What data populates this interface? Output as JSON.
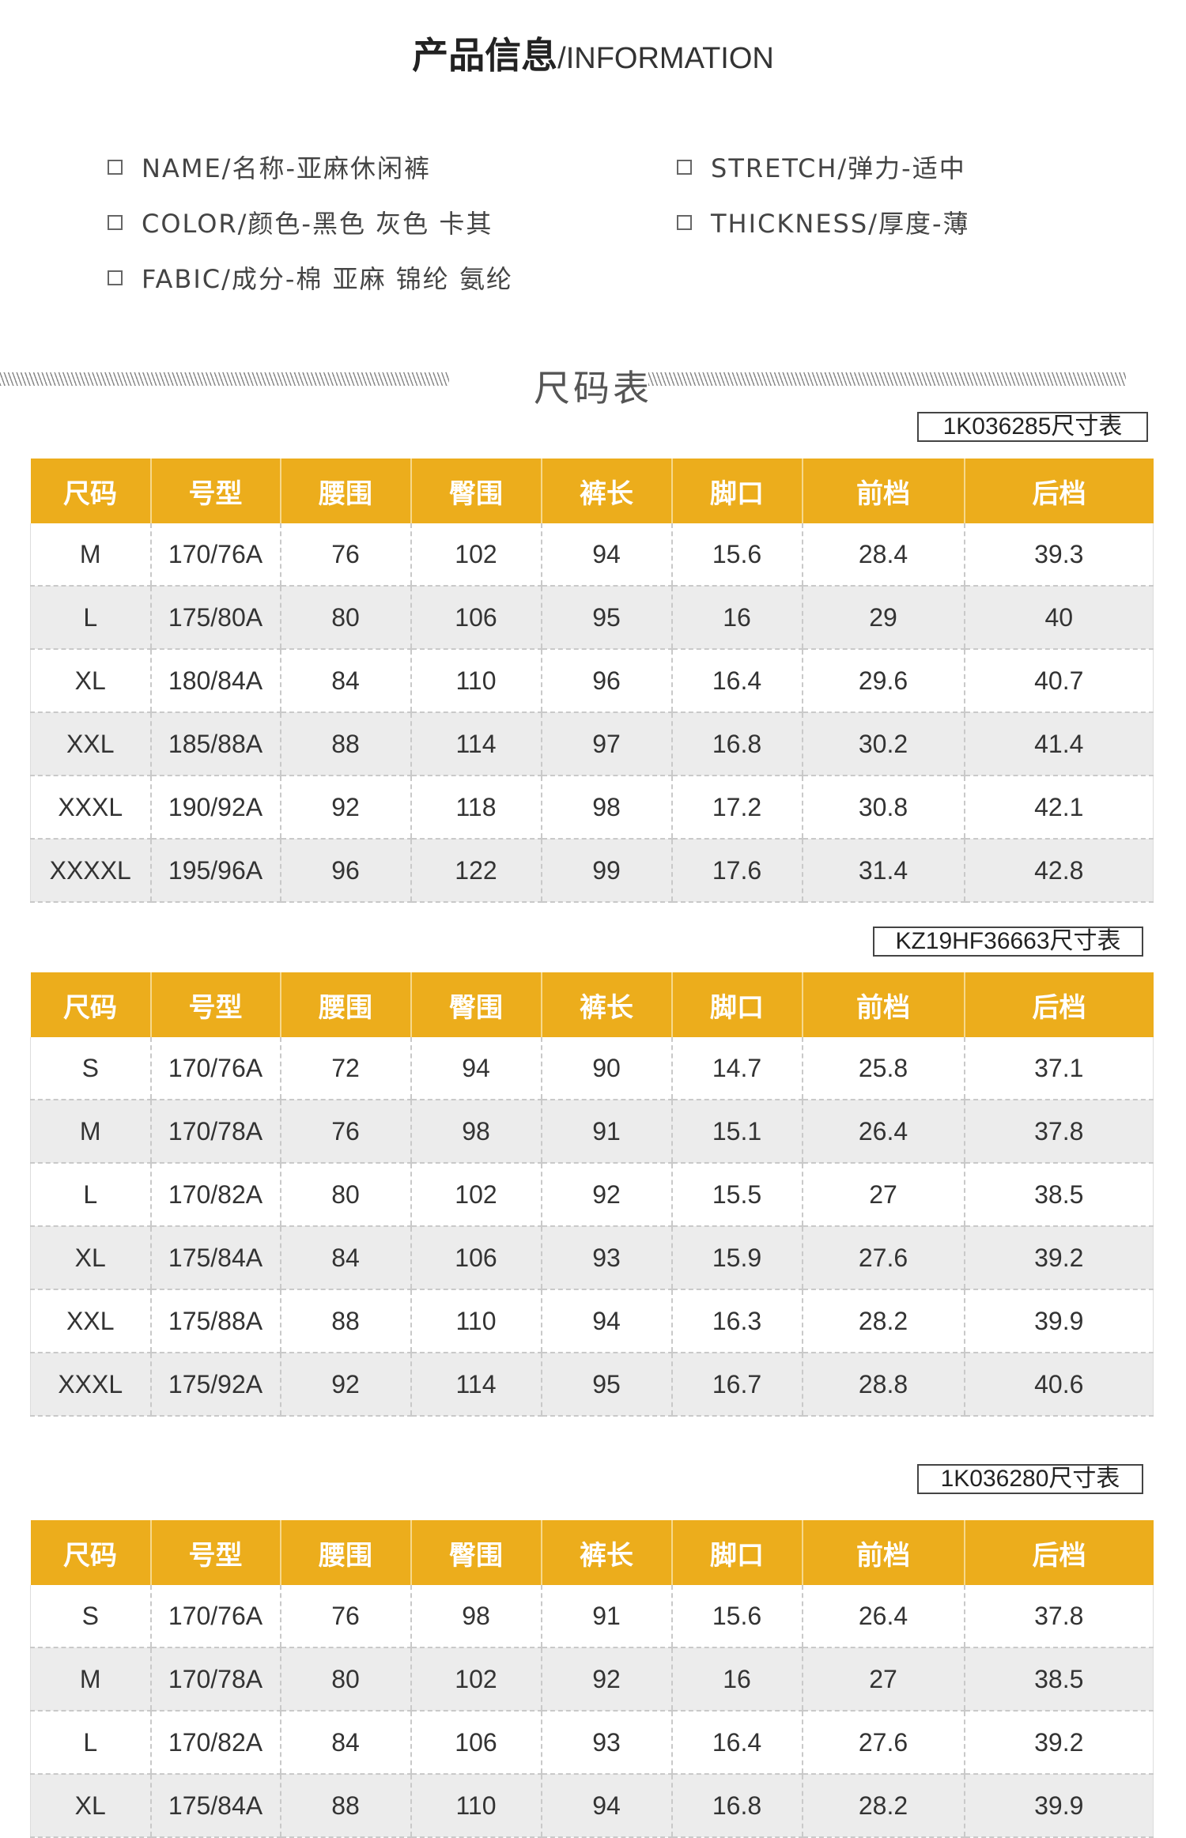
{
  "header": {
    "title_zh": "产品信息",
    "title_en": "/INFORMATION"
  },
  "info": {
    "name": "NAME/名称-亚麻休闲裤",
    "color": "COLOR/颜色-黑色 灰色 卡其",
    "fabric": "FABIC/成分-棉 亚麻 锦纶 氨纶",
    "stretch": "STRETCH/弹力-适中",
    "thickness": "THICKNESS/厚度-薄"
  },
  "section_title": "尺码表",
  "columns": [
    "尺码",
    "号型",
    "腰围",
    "臀围",
    "裤长",
    "脚口",
    "前档",
    "后档"
  ],
  "tables": [
    {
      "tag": "1K036285尺寸表",
      "rows": [
        [
          "M",
          "170/76A",
          "76",
          "102",
          "94",
          "15.6",
          "28.4",
          "39.3"
        ],
        [
          "L",
          "175/80A",
          "80",
          "106",
          "95",
          "16",
          "29",
          "40"
        ],
        [
          "XL",
          "180/84A",
          "84",
          "110",
          "96",
          "16.4",
          "29.6",
          "40.7"
        ],
        [
          "XXL",
          "185/88A",
          "88",
          "114",
          "97",
          "16.8",
          "30.2",
          "41.4"
        ],
        [
          "XXXL",
          "190/92A",
          "92",
          "118",
          "98",
          "17.2",
          "30.8",
          "42.1"
        ],
        [
          "XXXXL",
          "195/96A",
          "96",
          "122",
          "99",
          "17.6",
          "31.4",
          "42.8"
        ]
      ]
    },
    {
      "tag": "KZ19HF36663尺寸表",
      "rows": [
        [
          "S",
          "170/76A",
          "72",
          "94",
          "90",
          "14.7",
          "25.8",
          "37.1"
        ],
        [
          "M",
          "170/78A",
          "76",
          "98",
          "91",
          "15.1",
          "26.4",
          "37.8"
        ],
        [
          "L",
          "170/82A",
          "80",
          "102",
          "92",
          "15.5",
          "27",
          "38.5"
        ],
        [
          "XL",
          "175/84A",
          "84",
          "106",
          "93",
          "15.9",
          "27.6",
          "39.2"
        ],
        [
          "XXL",
          "175/88A",
          "88",
          "110",
          "94",
          "16.3",
          "28.2",
          "39.9"
        ],
        [
          "XXXL",
          "175/92A",
          "92",
          "114",
          "95",
          "16.7",
          "28.8",
          "40.6"
        ]
      ]
    },
    {
      "tag": "1K036280尺寸表",
      "rows": [
        [
          "S",
          "170/76A",
          "76",
          "98",
          "91",
          "15.6",
          "26.4",
          "37.8"
        ],
        [
          "M",
          "170/78A",
          "80",
          "102",
          "92",
          "16",
          "27",
          "38.5"
        ],
        [
          "L",
          "170/82A",
          "84",
          "106",
          "93",
          "16.4",
          "27.6",
          "39.2"
        ],
        [
          "XL",
          "175/84A",
          "88",
          "110",
          "94",
          "16.8",
          "28.2",
          "39.9"
        ]
      ]
    }
  ],
  "colors": {
    "header_bg": "#ecad1c",
    "header_text": "#ffffff",
    "alt_row": "#ececec"
  }
}
